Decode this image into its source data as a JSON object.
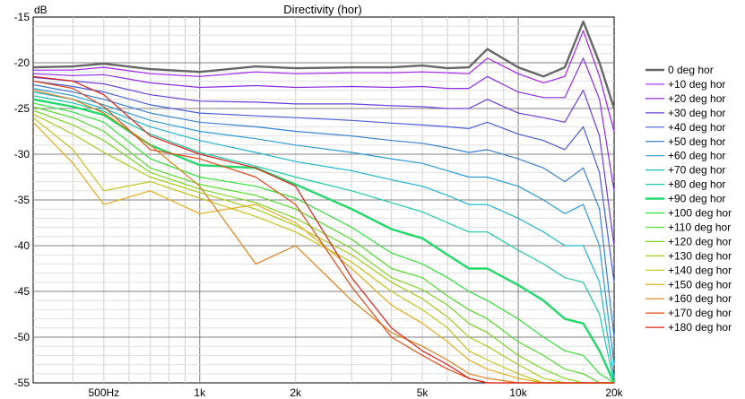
{
  "chart_data": {
    "type": "line",
    "title": "Directivity (hor)",
    "ylabel": "dB",
    "xlabel": "",
    "x_scale": "log",
    "xlim": [
      300,
      20000
    ],
    "ylim": [
      -55,
      -15
    ],
    "grid": true,
    "legend_position": "right",
    "x_ticks": [
      {
        "value": 500,
        "label": "500Hz"
      },
      {
        "value": 1000,
        "label": "1k"
      },
      {
        "value": 2000,
        "label": "2k"
      },
      {
        "value": 5000,
        "label": "5k"
      },
      {
        "value": 10000,
        "label": "10k"
      },
      {
        "value": 20000,
        "label": "20k"
      }
    ],
    "y_ticks": [
      {
        "value": -15,
        "label": "-15"
      },
      {
        "value": -20,
        "label": "-20"
      },
      {
        "value": -25,
        "label": "-25"
      },
      {
        "value": -30,
        "label": "-30"
      },
      {
        "value": -35,
        "label": "-35"
      },
      {
        "value": -40,
        "label": "-40"
      },
      {
        "value": -45,
        "label": "-45"
      },
      {
        "value": -50,
        "label": "-50"
      },
      {
        "value": -55,
        "label": "-55"
      }
    ],
    "x": [
      300,
      400,
      500,
      700,
      1000,
      1500,
      2000,
      3000,
      4000,
      5000,
      6000,
      7000,
      8000,
      10000,
      12000,
      14000,
      16000,
      18000,
      20000
    ],
    "series": [
      {
        "name": "0 deg hor",
        "color": "#666666",
        "bold": true,
        "values": [
          -20.5,
          -20.4,
          -20.1,
          -20.7,
          -21.0,
          -20.4,
          -20.6,
          -20.5,
          -20.5,
          -20.3,
          -20.6,
          -20.5,
          -18.5,
          -20.5,
          -21.5,
          -20.5,
          -15.5,
          -20.0,
          -25.0
        ]
      },
      {
        "name": "+10 deg hor",
        "color": "#a020f0",
        "values": [
          -20.8,
          -20.8,
          -20.5,
          -21.2,
          -21.5,
          -21.0,
          -21.2,
          -21.1,
          -21.1,
          -21.0,
          -21.1,
          -21.2,
          -19.5,
          -21.2,
          -22.2,
          -21.5,
          -16.5,
          -21.5,
          -27.5
        ]
      },
      {
        "name": "+20 deg hor",
        "color": "#8a2be2",
        "values": [
          -21.2,
          -21.4,
          -21.3,
          -22.2,
          -22.7,
          -22.5,
          -22.7,
          -22.6,
          -22.7,
          -22.6,
          -22.8,
          -22.8,
          -21.5,
          -23.2,
          -23.8,
          -23.8,
          -19.5,
          -24.0,
          -34.0
        ]
      },
      {
        "name": "+30 deg hor",
        "color": "#6a3fd8",
        "values": [
          -21.6,
          -22.0,
          -22.3,
          -23.5,
          -24.2,
          -24.3,
          -24.5,
          -24.5,
          -24.7,
          -24.8,
          -25.0,
          -25.0,
          -24.0,
          -25.5,
          -26.0,
          -26.5,
          -23.0,
          -28.0,
          -40.0
        ]
      },
      {
        "name": "+40 deg hor",
        "color": "#4b5cd6",
        "values": [
          -22.0,
          -22.6,
          -23.2,
          -24.6,
          -25.5,
          -25.8,
          -26.0,
          -26.3,
          -26.6,
          -26.8,
          -27.0,
          -27.2,
          -26.5,
          -27.8,
          -28.5,
          -29.5,
          -27.0,
          -32.0,
          -44.0
        ]
      },
      {
        "name": "+50 deg hor",
        "color": "#3b7fd0",
        "values": [
          -22.4,
          -23.2,
          -24.0,
          -25.5,
          -26.5,
          -27.0,
          -27.5,
          -28.0,
          -28.5,
          -28.8,
          -29.3,
          -29.8,
          -29.5,
          -30.5,
          -31.5,
          -33.0,
          -31.5,
          -36.0,
          -50.0
        ]
      },
      {
        "name": "+60 deg hor",
        "color": "#2d9bd0",
        "values": [
          -22.8,
          -23.6,
          -24.6,
          -26.3,
          -27.5,
          -28.3,
          -29.0,
          -29.8,
          -30.5,
          -31.0,
          -31.8,
          -32.5,
          -32.5,
          -33.5,
          -35.0,
          -36.5,
          -35.5,
          -40.0,
          -53.0
        ]
      },
      {
        "name": "+70 deg hor",
        "color": "#20b5c8",
        "values": [
          -23.2,
          -24.0,
          -25.0,
          -27.0,
          -28.5,
          -29.8,
          -30.8,
          -31.8,
          -32.8,
          -33.5,
          -34.5,
          -35.5,
          -35.5,
          -37.0,
          -38.5,
          -40.0,
          -40.0,
          -44.0,
          -54.5
        ]
      },
      {
        "name": "+80 deg hor",
        "color": "#1ec8a8",
        "values": [
          -23.6,
          -24.4,
          -25.3,
          -27.8,
          -29.8,
          -31.3,
          -32.5,
          -34.0,
          -35.3,
          -36.3,
          -37.5,
          -38.5,
          -38.5,
          -40.5,
          -42.0,
          -43.5,
          -44.0,
          -47.5,
          -55.0
        ]
      },
      {
        "name": "+90 deg hor",
        "color": "#22d86a",
        "bold": true,
        "values": [
          -24.0,
          -24.8,
          -25.7,
          -29.0,
          -31.2,
          -31.5,
          -33.3,
          -36.0,
          -38.2,
          -39.2,
          -41.0,
          -42.5,
          -42.5,
          -44.3,
          -46.0,
          -48.0,
          -48.5,
          -51.5,
          -55.0
        ]
      },
      {
        "name": "+100 deg hor",
        "color": "#33e03a",
        "values": [
          -24.4,
          -25.4,
          -26.5,
          -30.5,
          -32.5,
          -33.5,
          -34.8,
          -38.0,
          -40.8,
          -42.0,
          -43.5,
          -45.0,
          -46.0,
          -48.0,
          -50.0,
          -51.5,
          -52.0,
          -54.0,
          -55.0
        ]
      },
      {
        "name": "+110 deg hor",
        "color": "#55d82c",
        "values": [
          -24.8,
          -26.0,
          -27.5,
          -31.5,
          -33.3,
          -34.5,
          -36.0,
          -39.3,
          -42.5,
          -43.5,
          -45.5,
          -47.0,
          -48.0,
          -50.5,
          -52.0,
          -53.5,
          -54.0,
          -55.0,
          -55.0
        ]
      },
      {
        "name": "+120 deg hor",
        "color": "#7ed320",
        "values": [
          -25.2,
          -26.8,
          -28.5,
          -32.0,
          -33.8,
          -35.3,
          -37.0,
          -40.3,
          -43.5,
          -44.8,
          -46.5,
          -48.5,
          -49.5,
          -52.0,
          -53.5,
          -54.5,
          -55.0,
          -55.0,
          -55.0
        ]
      },
      {
        "name": "+130 deg hor",
        "color": "#a6cc1a",
        "values": [
          -25.6,
          -27.8,
          -29.8,
          -32.5,
          -34.2,
          -36.0,
          -37.8,
          -41.0,
          -44.0,
          -45.8,
          -47.8,
          -50.0,
          -51.0,
          -53.0,
          -54.5,
          -55.0,
          -55.0,
          -55.0,
          -55.0
        ]
      },
      {
        "name": "+140 deg hor",
        "color": "#c4c41e",
        "values": [
          -26.0,
          -29.5,
          -34.0,
          -33.0,
          -34.8,
          -36.8,
          -38.5,
          -41.8,
          -45.0,
          -47.0,
          -49.0,
          -51.5,
          -52.5,
          -54.0,
          -55.0,
          -55.0,
          -55.0,
          -55.0,
          -55.0
        ]
      },
      {
        "name": "+150 deg hor",
        "color": "#e0ae1a",
        "values": [
          -26.5,
          -31.0,
          -35.5,
          -34.0,
          -36.5,
          -35.5,
          -37.5,
          -42.5,
          -46.5,
          -48.5,
          -50.5,
          -52.5,
          -53.5,
          -54.5,
          -55.0,
          -55.0,
          -55.0,
          -55.0,
          -55.0
        ]
      },
      {
        "name": "+160 deg hor",
        "color": "#e0801a",
        "values": [
          -23.0,
          -24.0,
          -25.5,
          -29.0,
          -33.5,
          -42.0,
          -40.0,
          -46.0,
          -49.5,
          -51.0,
          -52.5,
          -54.0,
          -54.5,
          -55.0,
          -55.0,
          -55.0,
          -55.0,
          -55.0,
          -55.0
        ]
      },
      {
        "name": "+170 deg hor",
        "color": "#e04a1a",
        "values": [
          -22.0,
          -22.8,
          -24.8,
          -29.5,
          -30.5,
          -32.5,
          -35.5,
          -44.5,
          -50.0,
          -52.0,
          -53.5,
          -54.5,
          -55.0,
          -55.0,
          -55.0,
          -55.0,
          -55.0,
          -55.0,
          -55.0
        ]
      },
      {
        "name": "+180 deg hor",
        "color": "#d8201a",
        "values": [
          -21.5,
          -22.0,
          -23.5,
          -28.0,
          -30.0,
          -31.5,
          -33.5,
          -43.5,
          -49.0,
          -51.5,
          -53.0,
          -54.5,
          -55.0,
          -55.0,
          -55.0,
          -55.0,
          -55.0,
          -55.0,
          -55.0
        ]
      }
    ]
  }
}
